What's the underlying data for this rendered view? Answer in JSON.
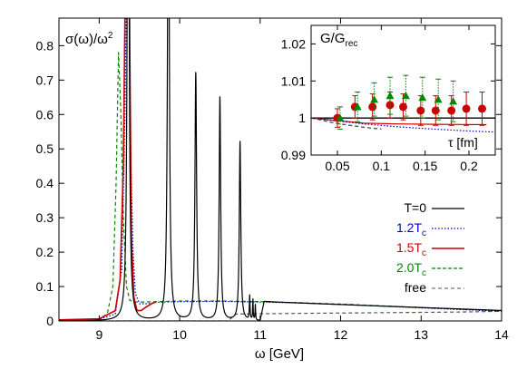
{
  "chart_data": [
    {
      "type": "line",
      "id": "main",
      "xlabel": "ω [GeV]",
      "ylabel": "σ(ω)/ω",
      "ylabel_sup": "2",
      "xlim": [
        8.5,
        14
      ],
      "ylim": [
        0,
        0.88
      ],
      "xticks": [
        9,
        10,
        11,
        12,
        13,
        14
      ],
      "yticks": [
        0,
        0.1,
        0.2,
        0.3,
        0.4,
        0.5,
        0.6,
        0.7,
        0.8
      ],
      "xtick_labels": [
        "9",
        "10",
        "11",
        "12",
        "13",
        "14"
      ],
      "ytick_labels": [
        "0",
        "0.1",
        "0.2",
        "0.3",
        "0.4",
        "0.5",
        "0.6",
        "0.7",
        "0.8"
      ],
      "legend_position": "bottom-right",
      "series": [
        {
          "name": "T=0",
          "color": "#000000",
          "dash": "solid",
          "peaks": [
            {
              "x": 9.36,
              "height": 2.0,
              "width": 0.012
            },
            {
              "x": 9.86,
              "height": 1.6,
              "width": 0.012
            },
            {
              "x": 10.2,
              "height": 0.72,
              "width": 0.012
            },
            {
              "x": 10.5,
              "height": 0.65,
              "width": 0.011
            },
            {
              "x": 10.75,
              "height": 0.52,
              "width": 0.011
            },
            {
              "x": 10.87,
              "height": 0.07,
              "width": 0.005
            },
            {
              "x": 10.91,
              "height": 0.06,
              "width": 0.004
            },
            {
              "x": 10.94,
              "height": 0.045,
              "width": 0.004
            }
          ]
        },
        {
          "name": "1.2T",
          "name_sub": "c",
          "color": "#0000cc",
          "dash": "dotted",
          "x": [
            8.5,
            9.0,
            9.2,
            9.28,
            9.32,
            9.35,
            9.37,
            9.39,
            9.42,
            9.45,
            9.5,
            9.6,
            9.7,
            9.8,
            10,
            10.5,
            11,
            11.5,
            12,
            12.5,
            13,
            13.5,
            14
          ],
          "y": [
            0.003,
            0.005,
            0.02,
            0.15,
            0.6,
            1.2,
            0.95,
            0.5,
            0.2,
            0.08,
            0.05,
            0.05,
            0.054,
            0.055,
            0.056,
            0.057,
            0.055,
            0.052,
            0.048,
            0.043,
            0.038,
            0.033,
            0.028
          ]
        },
        {
          "name": "1.5T",
          "name_sub": "c",
          "color": "#cc0000",
          "dash": "solid",
          "x": [
            8.5,
            9.0,
            9.2,
            9.26,
            9.3,
            9.33,
            9.36,
            9.38,
            9.4,
            9.43,
            9.47,
            9.52,
            9.58,
            9.65,
            9.7
          ],
          "y": [
            0.003,
            0.006,
            0.03,
            0.12,
            0.45,
            1.1,
            1.6,
            0.8,
            0.25,
            0.07,
            0.03,
            0.03,
            0.04,
            0.05,
            0.055
          ]
        },
        {
          "name": "2.0T",
          "name_sub": "c",
          "color": "#008800",
          "dash": "dashed",
          "x": [
            8.5,
            9.0,
            9.1,
            9.17,
            9.21,
            9.24,
            9.27,
            9.3,
            9.34,
            9.38,
            9.45,
            9.55,
            9.7,
            10,
            10.5,
            11,
            11.5,
            12,
            12.5,
            13,
            13.5,
            14
          ],
          "y": [
            0.003,
            0.006,
            0.02,
            0.1,
            0.4,
            0.78,
            0.6,
            0.3,
            0.1,
            0.06,
            0.055,
            0.055,
            0.056,
            0.058,
            0.058,
            0.056,
            0.053,
            0.049,
            0.044,
            0.039,
            0.034,
            0.029
          ]
        },
        {
          "name": "free",
          "color": "#555555",
          "dash": "dashed",
          "x": [
            8.5,
            10.6,
            10.7,
            11,
            11.5,
            12,
            12.5,
            13,
            13.5,
            14
          ],
          "y": [
            0,
            0,
            0.02,
            0.021,
            0.022,
            0.023,
            0.024,
            0.025,
            0.026,
            0.028
          ]
        }
      ]
    },
    {
      "type": "scatter",
      "id": "inset",
      "title": "G/G",
      "title_sub": "rec",
      "xlabel": "τ [fm]",
      "xlim": [
        0.02,
        0.23
      ],
      "ylim": [
        0.99,
        1.025
      ],
      "xticks": [
        0.05,
        0.1,
        0.15,
        0.2
      ],
      "yticks": [
        0.99,
        1,
        1.01,
        1.02
      ],
      "xtick_labels": [
        "0.05",
        "0.1",
        "0.15",
        "0.2"
      ],
      "ytick_labels": [
        "0.99",
        "1",
        "1.01",
        "1.02"
      ],
      "reference_y": 1,
      "series": [
        {
          "marker": "circle",
          "color": "#cc0000",
          "x": [
            0.05,
            0.07,
            0.09,
            0.11,
            0.125,
            0.145,
            0.162,
            0.18,
            0.197,
            0.215
          ],
          "y": [
            1.0,
            1.003,
            1.003,
            1.0035,
            1.003,
            1.002,
            1.002,
            1.002,
            1.0025,
            1.0025
          ],
          "err": [
            0.0025,
            0.003,
            0.0035,
            0.0035,
            0.0035,
            0.004,
            0.004,
            0.004,
            0.0045,
            0.0045
          ]
        },
        {
          "marker": "triangle",
          "color": "#008800",
          "x": [
            0.053,
            0.073,
            0.092,
            0.11,
            0.128,
            0.147,
            0.165,
            0.182
          ],
          "y": [
            1.0,
            1.003,
            1.005,
            1.006,
            1.006,
            1.0055,
            1.005,
            1.0045
          ],
          "err": [
            0.003,
            0.004,
            0.0045,
            0.005,
            0.0055,
            0.0055,
            0.0055,
            0.0055
          ]
        }
      ],
      "lines": [
        {
          "color": "#cc0000",
          "dash": "solid",
          "x": [
            0.02,
            0.08,
            0.12,
            0.16,
            0.22
          ],
          "y": [
            1.0,
            0.9986,
            0.9984,
            0.9983,
            0.9982
          ]
        },
        {
          "color": "#0000cc",
          "dash": "dotted",
          "x": [
            0.02,
            0.05,
            0.08,
            0.12,
            0.16,
            0.2,
            0.23
          ],
          "y": [
            1.0,
            0.9992,
            0.9984,
            0.9976,
            0.997,
            0.9965,
            0.9962
          ]
        },
        {
          "color": "#008800",
          "dash": "dashed",
          "x": [
            0.02,
            0.05,
            0.08,
            0.1
          ],
          "y": [
            1.0,
            0.9985,
            0.9975,
            0.997
          ]
        },
        {
          "color": "#555555",
          "dash": "dashed",
          "x": [
            0.02,
            0.05,
            0.08,
            0.1
          ],
          "y": [
            1.0,
            0.9985,
            0.9975,
            0.997
          ]
        }
      ]
    }
  ]
}
